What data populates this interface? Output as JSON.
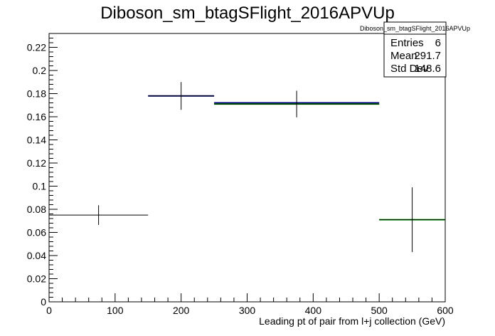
{
  "chart_data": {
    "type": "scatter",
    "title": "Diboson_sm_btagSFlight_2016APVUp",
    "xlabel": "Leading pt of pair from l+j collection (GeV)",
    "ylabel": "",
    "xlim": [
      0,
      600
    ],
    "ylim": [
      0,
      0.232
    ],
    "x_ticks": [
      0,
      100,
      200,
      300,
      400,
      500,
      600
    ],
    "x_tick_labels": [
      "0",
      "100",
      "200",
      "300",
      "400",
      "500",
      "600"
    ],
    "y_ticks": [
      0,
      0.02,
      0.04,
      0.06,
      0.08,
      0.1,
      0.12,
      0.14,
      0.16,
      0.18,
      0.2,
      0.22
    ],
    "y_tick_labels": [
      "0",
      "0.02",
      "0.04",
      "0.06",
      "0.08",
      "0.1",
      "0.12",
      "0.14",
      "0.16",
      "0.18",
      "0.2",
      "0.22"
    ],
    "grid": false,
    "series": [
      {
        "color": "#000000",
        "points": [
          {
            "x": 75,
            "xlow": 0,
            "xhigh": 150,
            "y": 0.075,
            "yerr": 0.0085
          },
          {
            "x": 200,
            "xlow": 150,
            "xhigh": 250,
            "y": 0.178,
            "yerr": 0.012
          },
          {
            "x": 375,
            "xlow": 250,
            "xhigh": 500,
            "y": 0.171,
            "yerr": 0.0115
          },
          {
            "x": 550,
            "xlow": 500,
            "xhigh": 600,
            "y": 0.071,
            "yerr": 0.028
          }
        ]
      },
      {
        "color": "#000080",
        "segments": [
          {
            "xlow": 150,
            "xhigh": 250,
            "y": 0.178
          },
          {
            "xlow": 250,
            "xhigh": 500,
            "y": 0.172
          }
        ]
      },
      {
        "color": "#00aa00",
        "segments": [
          {
            "xlow": 250,
            "xhigh": 500,
            "y": 0.171
          },
          {
            "xlow": 500,
            "xhigh": 600,
            "y": 0.071
          }
        ]
      }
    ],
    "stats_box": {
      "name": "Diboson_sm_btagSFlight_2016APVUp",
      "rows": [
        {
          "label": "Entries",
          "value": "6"
        },
        {
          "label": "Mean",
          "value": "291.7"
        },
        {
          "label": "Std Dev",
          "value": "148.6"
        }
      ]
    }
  }
}
